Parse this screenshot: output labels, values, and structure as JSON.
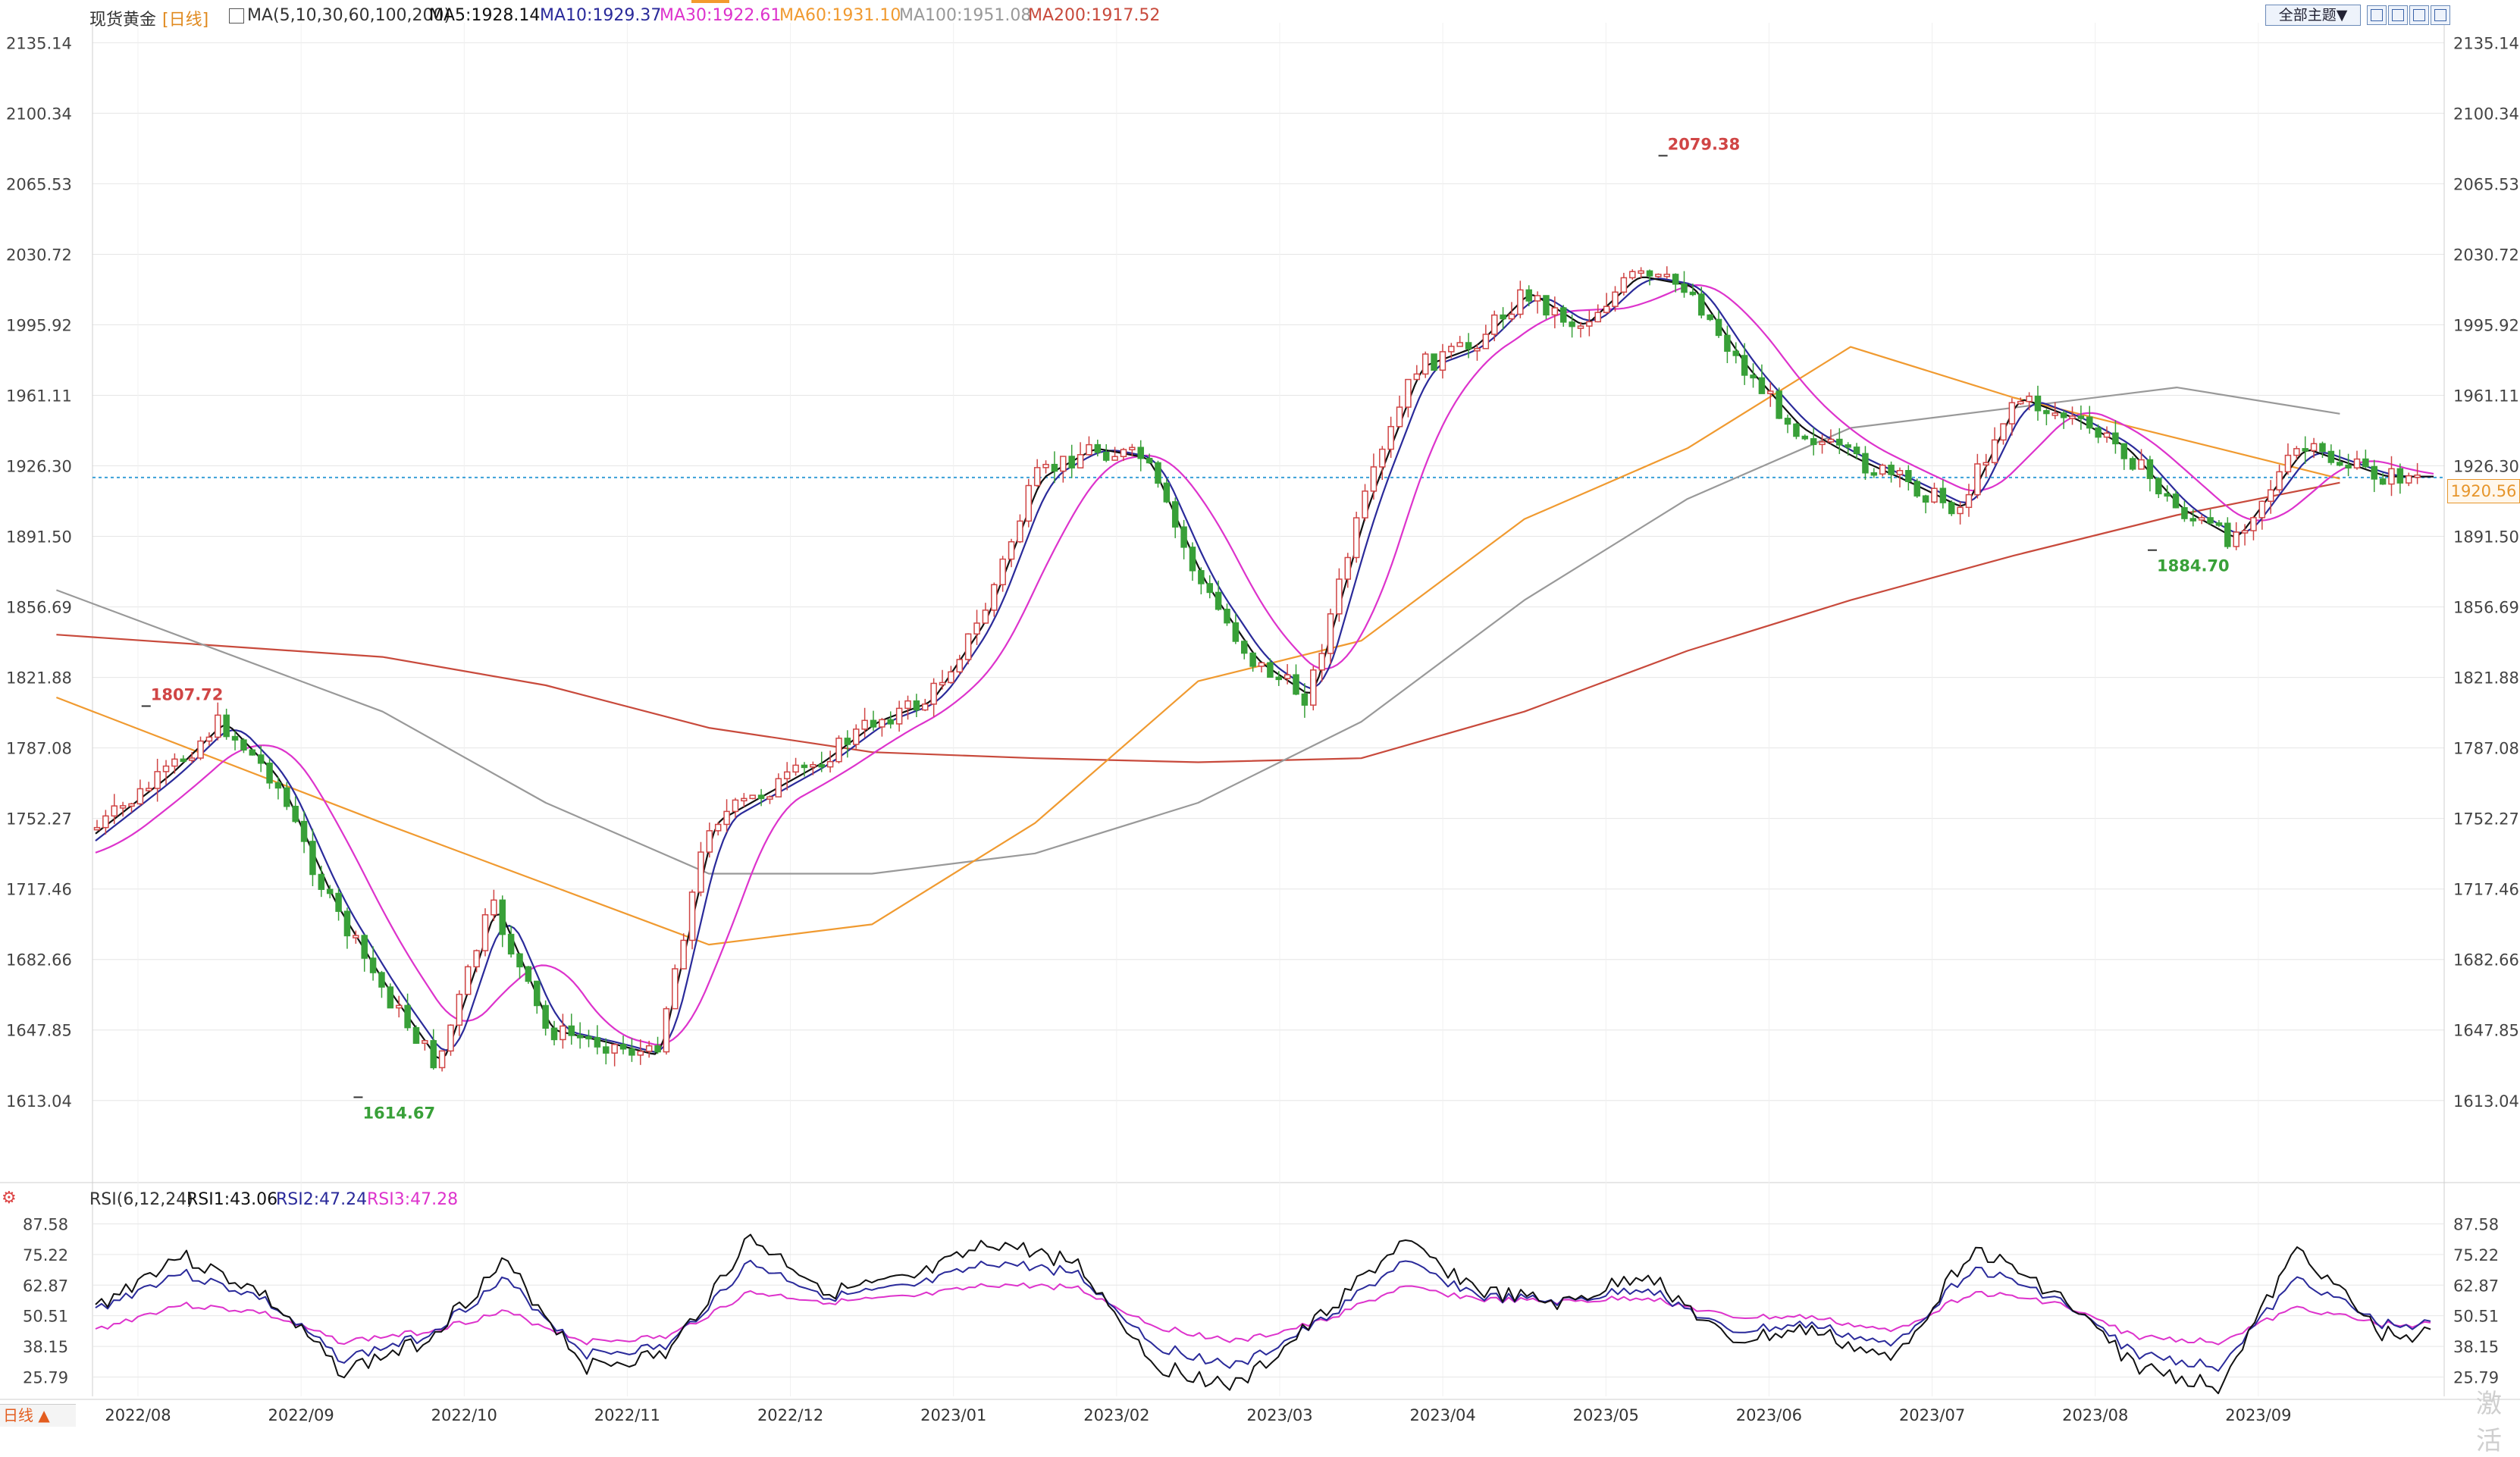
{
  "header": {
    "symbol": "现货黄金",
    "period": "[日线]",
    "ma_spec": "MA(5,10,30,60,100,200)",
    "ma5": "MA5:1928.14",
    "ma10": "MA10:1929.37",
    "ma30": "MA30:1922.61",
    "ma60": "MA60:1931.10",
    "ma100": "MA100:1951.08",
    "ma200": "MA200:1917.52"
  },
  "toolbar": {
    "theme_label": "全部主题▼"
  },
  "rsi_header": {
    "spec": "RSI(6,12,24)",
    "rsi1": "RSI1:43.06",
    "rsi2": "RSI2:47.24",
    "rsi3": "RSI3:47.28"
  },
  "bottom_tab": {
    "label": "日线 ▲"
  },
  "watermark": "激活",
  "colors": {
    "up": "#d04545",
    "down": "#38a038",
    "ma5": "#111111",
    "ma10": "#2a2a9a",
    "ma30": "#dd33cc",
    "ma60": "#f09a30",
    "ma100": "#999999",
    "ma200": "#c84a3c",
    "rsi1": "#111111",
    "rsi2": "#2a2a9a",
    "rsi3": "#dd33cc",
    "last_price": "#e6952b",
    "grid": "#e6e6e6"
  },
  "chart_data": {
    "type": "candlestick",
    "ylim": [
      1595,
      2145
    ],
    "y_ticks": [
      "2135.14",
      "2100.34",
      "2065.53",
      "2030.72",
      "1995.92",
      "1961.11",
      "1926.30",
      "1891.50",
      "1856.69",
      "1821.88",
      "1787.08",
      "1752.27",
      "1717.46",
      "1682.66",
      "1647.85",
      "1613.04"
    ],
    "x_labels": [
      "2022/08",
      "2022/09",
      "2022/10",
      "2022/11",
      "2022/12",
      "2023/01",
      "2023/02",
      "2023/03",
      "2023/04",
      "2023/05",
      "2023/06",
      "2023/07",
      "2023/08",
      "2023/09"
    ],
    "last_price": "1920.56",
    "annotations": [
      {
        "text": "1807.72",
        "type": "high",
        "value": 1807.72,
        "date": "2022/08"
      },
      {
        "text": "1614.67",
        "type": "low",
        "value": 1614.67,
        "date": "2022/09"
      },
      {
        "text": "2079.38",
        "type": "high",
        "value": 2079.38,
        "date": "2023/05"
      },
      {
        "text": "1884.70",
        "type": "low",
        "value": 1884.7,
        "date": "2023/08"
      }
    ],
    "price_path": [
      [
        "2022/07",
        1732
      ],
      [
        "2022/08",
        1774
      ],
      [
        "2022/08",
        1800
      ],
      [
        "2022/08",
        1772
      ],
      [
        "2022/09",
        1712
      ],
      [
        "2022/09",
        1668
      ],
      [
        "2022/09",
        1630
      ],
      [
        "2022/10",
        1710
      ],
      [
        "2022/10",
        1648
      ],
      [
        "2022/10",
        1642
      ],
      [
        "2022/11",
        1635
      ],
      [
        "2022/11",
        1750
      ],
      [
        "2022/11",
        1765
      ],
      [
        "2022/12",
        1780
      ],
      [
        "2022/12",
        1800
      ],
      [
        "2022/12",
        1810
      ],
      [
        "2023/01",
        1850
      ],
      [
        "2023/01",
        1920
      ],
      [
        "2023/01",
        1935
      ],
      [
        "2023/02",
        1930
      ],
      [
        "2023/02",
        1870
      ],
      [
        "2023/02",
        1830
      ],
      [
        "2023/03",
        1812
      ],
      [
        "2023/03",
        1905
      ],
      [
        "2023/03",
        1975
      ],
      [
        "2023/04",
        1985
      ],
      [
        "2023/04",
        2012
      ],
      [
        "2023/04",
        1995
      ],
      [
        "2023/05",
        2020
      ],
      [
        "2023/05",
        2015
      ],
      [
        "2023/05",
        1975
      ],
      [
        "2023/06",
        1945
      ],
      [
        "2023/06",
        1930
      ],
      [
        "2023/06",
        1918
      ],
      [
        "2023/07",
        1905
      ],
      [
        "2023/07",
        1960
      ],
      [
        "2023/07",
        1950
      ],
      [
        "2023/08",
        1935
      ],
      [
        "2023/08",
        1905
      ],
      [
        "2023/08",
        1890
      ],
      [
        "2023/09",
        1935
      ],
      [
        "2023/09",
        1921
      ]
    ],
    "ma_paths": {
      "ma60": [
        [
          "2022/07",
          1812
        ],
        [
          "2022/09",
          1750
        ],
        [
          "2022/10",
          1720
        ],
        [
          "2022/11",
          1690
        ],
        [
          "2022/12",
          1700
        ],
        [
          "2023/01",
          1750
        ],
        [
          "2023/02",
          1820
        ],
        [
          "2023/03",
          1840
        ],
        [
          "2023/04",
          1900
        ],
        [
          "2023/05",
          1935
        ],
        [
          "2023/06",
          1985
        ],
        [
          "2023/07",
          1960
        ],
        [
          "2023/08",
          1940
        ],
        [
          "2023/09",
          1920
        ]
      ],
      "ma100": [
        [
          "2022/07",
          1865
        ],
        [
          "2022/09",
          1805
        ],
        [
          "2022/10",
          1760
        ],
        [
          "2022/11",
          1725
        ],
        [
          "2022/12",
          1725
        ],
        [
          "2023/01",
          1735
        ],
        [
          "2023/02",
          1760
        ],
        [
          "2023/03",
          1800
        ],
        [
          "2023/04",
          1860
        ],
        [
          "2023/05",
          1910
        ],
        [
          "2023/06",
          1945
        ],
        [
          "2023/07",
          1955
        ],
        [
          "2023/08",
          1965
        ],
        [
          "2023/09",
          1952
        ]
      ],
      "ma200": [
        [
          "2022/07",
          1843
        ],
        [
          "2022/09",
          1832
        ],
        [
          "2022/10",
          1818
        ],
        [
          "2022/11",
          1797
        ],
        [
          "2022/12",
          1785
        ],
        [
          "2023/01",
          1782
        ],
        [
          "2023/02",
          1780
        ],
        [
          "2023/03",
          1782
        ],
        [
          "2023/04",
          1805
        ],
        [
          "2023/05",
          1835
        ],
        [
          "2023/06",
          1860
        ],
        [
          "2023/07",
          1882
        ],
        [
          "2023/08",
          1902
        ],
        [
          "2023/09",
          1918
        ]
      ]
    },
    "rsi": {
      "ylim": [
        18,
        92
      ],
      "y_ticks": [
        "87.58",
        "75.22",
        "62.87",
        "50.51",
        "38.15",
        "25.79"
      ],
      "rsi1_path": [
        [
          "2022/07",
          44
        ],
        [
          "2022/08",
          75
        ],
        [
          "2022/08",
          60
        ],
        [
          "2022/09",
          28
        ],
        [
          "2022/09",
          40
        ],
        [
          "2022/10",
          72
        ],
        [
          "2022/10",
          30
        ],
        [
          "2022/11",
          35
        ],
        [
          "2022/11",
          82
        ],
        [
          "2022/12",
          60
        ],
        [
          "2022/12",
          65
        ],
        [
          "2023/01",
          80
        ],
        [
          "2023/01",
          72
        ],
        [
          "2023/02",
          30
        ],
        [
          "2023/02",
          22
        ],
        [
          "2023/03",
          50
        ],
        [
          "2023/03",
          80
        ],
        [
          "2023/04",
          60
        ],
        [
          "2023/04",
          55
        ],
        [
          "2023/05",
          68
        ],
        [
          "2023/05",
          40
        ],
        [
          "2023/06",
          45
        ],
        [
          "2023/06",
          32
        ],
        [
          "2023/07",
          78
        ],
        [
          "2023/07",
          60
        ],
        [
          "2023/08",
          30
        ],
        [
          "2023/08",
          22
        ],
        [
          "2023/09",
          78
        ],
        [
          "2023/09",
          43
        ]
      ],
      "rsi2_path": [
        [
          "2022/07",
          46
        ],
        [
          "2022/08",
          68
        ],
        [
          "2022/08",
          58
        ],
        [
          "2022/09",
          33
        ],
        [
          "2022/09",
          42
        ],
        [
          "2022/10",
          65
        ],
        [
          "2022/10",
          35
        ],
        [
          "2022/11",
          38
        ],
        [
          "2022/11",
          72
        ],
        [
          "2022/12",
          58
        ],
        [
          "2022/12",
          62
        ],
        [
          "2023/01",
          72
        ],
        [
          "2023/01",
          68
        ],
        [
          "2023/02",
          38
        ],
        [
          "2023/02",
          30
        ],
        [
          "2023/03",
          48
        ],
        [
          "2023/03",
          72
        ],
        [
          "2023/04",
          58
        ],
        [
          "2023/04",
          56
        ],
        [
          "2023/05",
          62
        ],
        [
          "2023/05",
          44
        ],
        [
          "2023/06",
          47
        ],
        [
          "2023/06",
          38
        ],
        [
          "2023/07",
          70
        ],
        [
          "2023/07",
          58
        ],
        [
          "2023/08",
          35
        ],
        [
          "2023/08",
          30
        ],
        [
          "2023/09",
          66
        ],
        [
          "2023/09",
          47
        ]
      ],
      "rsi3_path": [
        [
          "2022/07",
          40
        ],
        [
          "2022/08",
          55
        ],
        [
          "2022/08",
          52
        ],
        [
          "2022/09",
          40
        ],
        [
          "2022/09",
          44
        ],
        [
          "2022/10",
          52
        ],
        [
          "2022/10",
          40
        ],
        [
          "2022/11",
          42
        ],
        [
          "2022/11",
          60
        ],
        [
          "2022/12",
          56
        ],
        [
          "2022/12",
          58
        ],
        [
          "2023/01",
          63
        ],
        [
          "2023/01",
          62
        ],
        [
          "2023/02",
          46
        ],
        [
          "2023/02",
          40
        ],
        [
          "2023/03",
          48
        ],
        [
          "2023/03",
          62
        ],
        [
          "2023/04",
          57
        ],
        [
          "2023/04",
          56
        ],
        [
          "2023/05",
          58
        ],
        [
          "2023/05",
          50
        ],
        [
          "2023/06",
          50
        ],
        [
          "2023/06",
          44
        ],
        [
          "2023/07",
          60
        ],
        [
          "2023/07",
          56
        ],
        [
          "2023/08",
          42
        ],
        [
          "2023/08",
          40
        ],
        [
          "2023/09",
          54
        ],
        [
          "2023/09",
          47
        ]
      ]
    }
  }
}
